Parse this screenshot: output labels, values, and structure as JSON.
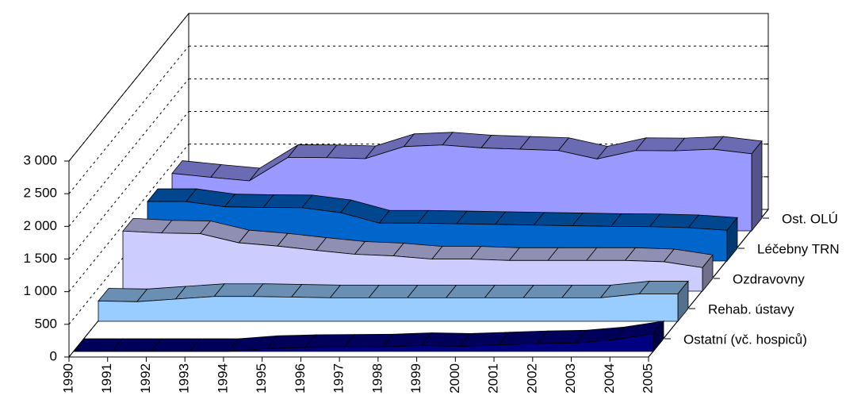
{
  "chart_data": {
    "type": "area3d",
    "categories": [
      "1990",
      "1991",
      "1992",
      "1993",
      "1994",
      "1995",
      "1996",
      "1997",
      "1998",
      "1999",
      "2000",
      "2001",
      "2002",
      "2003",
      "2004",
      "2005"
    ],
    "ylim": [
      0,
      3000
    ],
    "yticks": [
      0,
      500,
      {
        "value": 1000,
        "label": "1 000"
      },
      {
        "value": 1500,
        "label": "1 500"
      },
      {
        "value": 2000,
        "label": "2 000"
      },
      {
        "value": 2500,
        "label": "2 500"
      },
      {
        "value": 3000,
        "label": "3 000"
      }
    ],
    "grid": true,
    "series": [
      {
        "name": "Ostatní (vč. hospiců)",
        "color": "#000080",
        "values": [
          0,
          0,
          0,
          0,
          0,
          45,
          60,
          65,
          70,
          90,
          80,
          100,
          120,
          130,
          180,
          270
        ]
      },
      {
        "name": "Rehab. ústavy",
        "color": "#99ccff",
        "values": [
          310,
          300,
          340,
          380,
          380,
          370,
          360,
          360,
          360,
          360,
          360,
          360,
          360,
          360,
          420,
          420
        ]
      },
      {
        "name": "Ozdravovny",
        "color": "#ccccff",
        "values": [
          920,
          890,
          880,
          740,
          690,
          625,
          565,
          540,
          490,
          490,
          470,
          470,
          470,
          470,
          450,
          360
        ]
      },
      {
        "name": "Léčebny TRN",
        "color": "#0066cc",
        "values": [
          910,
          910,
          830,
          820,
          815,
          740,
          580,
          580,
          570,
          560,
          550,
          540,
          530,
          525,
          510,
          470
        ]
      },
      {
        "name": "Ost. OLÚ",
        "color": "#9999ff",
        "values": [
          880,
          820,
          765,
          1125,
          1120,
          1105,
          1290,
          1315,
          1270,
          1250,
          1230,
          1100,
          1230,
          1225,
          1250,
          1180
        ]
      }
    ]
  }
}
